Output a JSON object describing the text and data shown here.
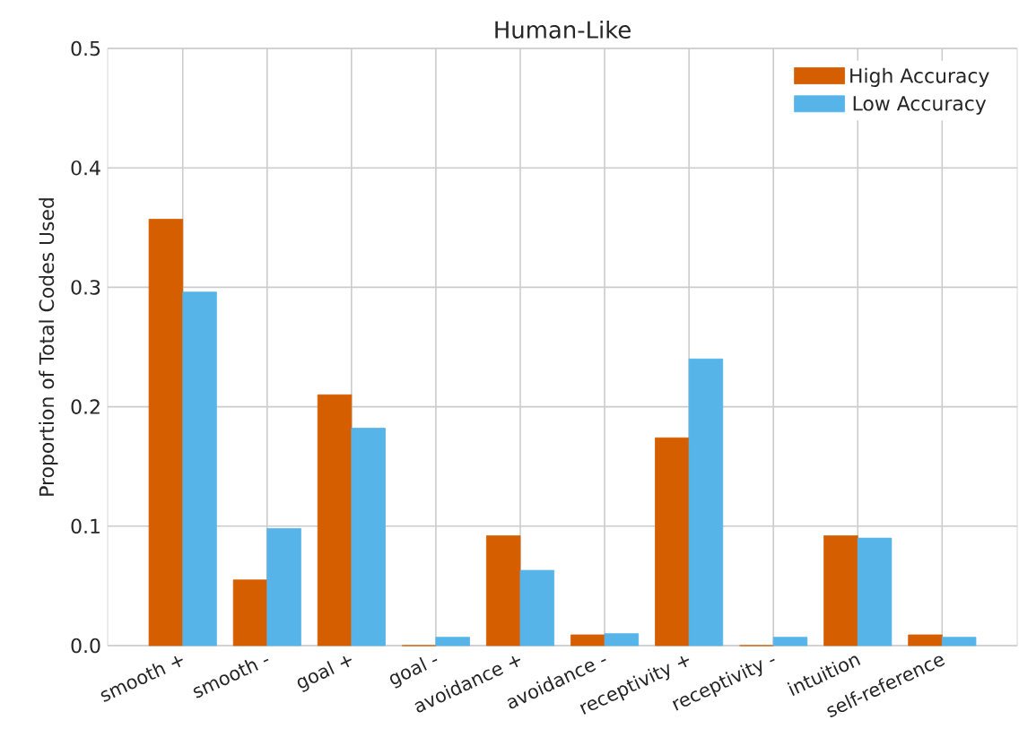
{
  "chart_data": {
    "type": "bar",
    "title": "Human-Like",
    "ylabel": "Proportion of Total Codes Used",
    "categories": [
      "smooth +",
      "smooth -",
      "goal +",
      "goal -",
      "avoidance +",
      "avoidance -",
      "receptivity +",
      "receptivity -",
      "intuition",
      "self-reference"
    ],
    "series": [
      {
        "name": "High Accuracy",
        "color": "#d55e00",
        "values": [
          0.357,
          0.055,
          0.21,
          0,
          0.092,
          0.009,
          0.174,
          0,
          0.092,
          0.009
        ]
      },
      {
        "name": "Low Accuracy",
        "color": "#56b4e9",
        "values": [
          0.296,
          0.098,
          0.182,
          0.007,
          0.063,
          0.01,
          0.24,
          0.007,
          0.09,
          0.007
        ]
      }
    ],
    "ylim": [
      0,
      0.5
    ],
    "yticks": [
      {
        "value": 0,
        "label": "0.0"
      },
      {
        "value": 0.1,
        "label": "0.1"
      },
      {
        "value": 0.2,
        "label": "0.2"
      },
      {
        "value": 0.3,
        "label": "0.3"
      },
      {
        "value": 0.4,
        "label": "0.4"
      },
      {
        "value": 0.5,
        "label": "0.5"
      }
    ],
    "grid": true,
    "legend": "top right"
  }
}
